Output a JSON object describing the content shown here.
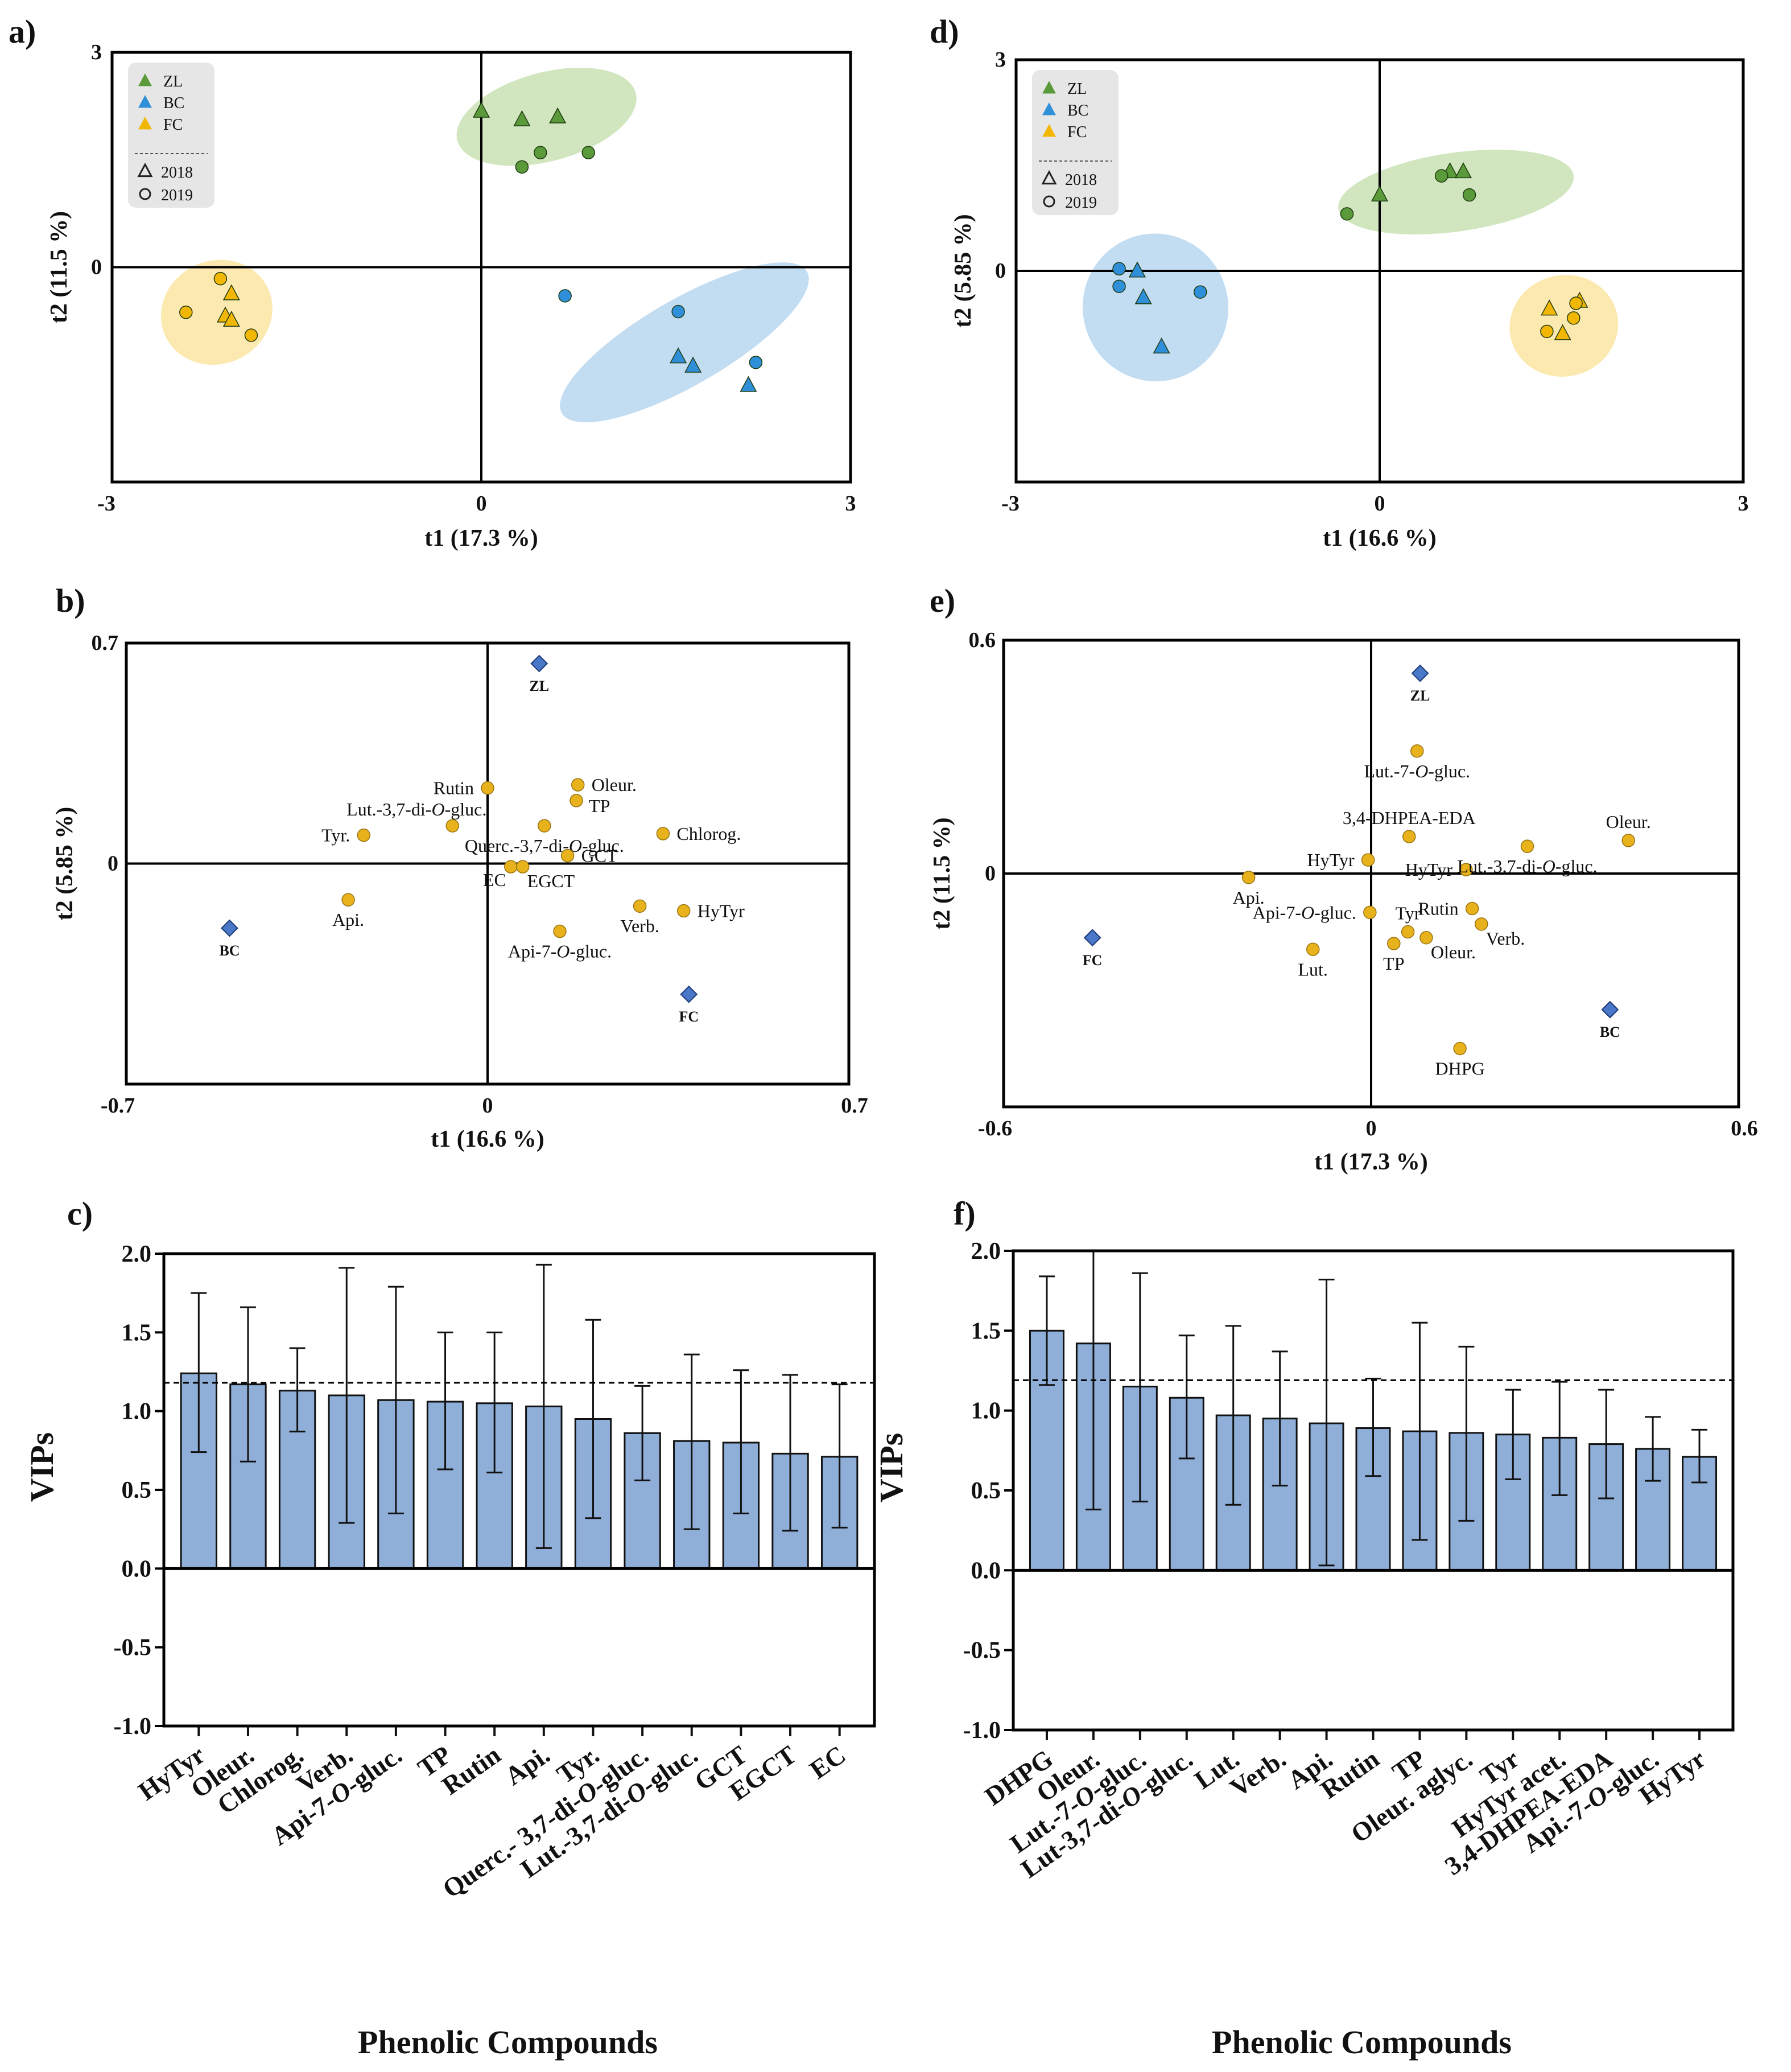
{
  "colors": {
    "ZL": "#5a9a3a",
    "BC": "#2f8fd8",
    "FC": "#f2b705",
    "ZL_ellipse": "#c9e2b3",
    "BC_ellipse": "#b7d6f0",
    "FC_ellipse": "#fbe5a2",
    "loading_point": "#e8b21c",
    "group_diamond": "#4a78c8",
    "bar_fill": "#8fafd9",
    "legend_bg": "#e6e6e6"
  },
  "chart_data": [
    {
      "id": "a",
      "panel_label": "a)",
      "type": "scatter",
      "title": "",
      "xlabel": "t1 (17.3 %)",
      "ylabel": "t2 (11.5 %)",
      "xlim": [
        -3,
        3
      ],
      "ylim": [
        -3,
        3
      ],
      "x_ticks": [
        "-3",
        "0",
        "3"
      ],
      "y_ticks": [
        "3",
        "0"
      ],
      "legend": {
        "position": "top-left",
        "groups": [
          {
            "name": "ZL",
            "color": "#5a9a3a"
          },
          {
            "name": "BC",
            "color": "#2f8fd8"
          },
          {
            "name": "FC",
            "color": "#f2b705"
          }
        ],
        "years": [
          {
            "name": "2018",
            "marker": "triangle"
          },
          {
            "name": "2019",
            "marker": "circle"
          }
        ]
      },
      "ellipses": [
        {
          "group": "ZL",
          "cx": 0.53,
          "cy": 2.1,
          "rx": 0.75,
          "ry": 0.62,
          "angle": -15
        },
        {
          "group": "BC",
          "cx": 1.65,
          "cy": -1.05,
          "rx": 1.15,
          "ry": 0.6,
          "angle": -30
        },
        {
          "group": "FC",
          "cx": -2.15,
          "cy": -0.63,
          "rx": 0.46,
          "ry": 0.72,
          "angle": -25
        }
      ],
      "series": [
        {
          "name": "ZL",
          "points": [
            {
              "x": 0.0,
              "y": 2.18,
              "m": "triangle"
            },
            {
              "x": 0.33,
              "y": 2.06,
              "m": "triangle"
            },
            {
              "x": 0.62,
              "y": 2.1,
              "m": "triangle"
            },
            {
              "x": 0.33,
              "y": 1.4,
              "m": "circle"
            },
            {
              "x": 0.48,
              "y": 1.6,
              "m": "circle"
            },
            {
              "x": 0.87,
              "y": 1.6,
              "m": "circle"
            }
          ]
        },
        {
          "name": "BC",
          "points": [
            {
              "x": 1.6,
              "y": -1.25,
              "m": "triangle"
            },
            {
              "x": 1.72,
              "y": -1.38,
              "m": "triangle"
            },
            {
              "x": 2.17,
              "y": -1.65,
              "m": "triangle"
            },
            {
              "x": 0.68,
              "y": -0.4,
              "m": "circle"
            },
            {
              "x": 1.6,
              "y": -0.62,
              "m": "circle"
            },
            {
              "x": 2.23,
              "y": -1.33,
              "m": "circle"
            }
          ]
        },
        {
          "name": "FC",
          "points": [
            {
              "x": -2.03,
              "y": -0.37,
              "m": "triangle"
            },
            {
              "x": -2.08,
              "y": -0.68,
              "m": "triangle"
            },
            {
              "x": -2.03,
              "y": -0.74,
              "m": "triangle"
            },
            {
              "x": -2.12,
              "y": -0.16,
              "m": "circle"
            },
            {
              "x": -2.4,
              "y": -0.63,
              "m": "circle"
            },
            {
              "x": -1.87,
              "y": -0.95,
              "m": "circle"
            }
          ]
        }
      ]
    },
    {
      "id": "d",
      "panel_label": "d)",
      "type": "scatter",
      "title": "",
      "xlabel": "t1 (16.6 %)",
      "ylabel": "t2 (5.85 %)",
      "xlim": [
        -3,
        3
      ],
      "ylim": [
        -3,
        3
      ],
      "x_ticks": [
        "-3",
        "0",
        "3"
      ],
      "y_ticks": [
        "3",
        "0"
      ],
      "legend": {
        "position": "top-left",
        "groups": [
          {
            "name": "ZL",
            "color": "#5a9a3a"
          },
          {
            "name": "BC",
            "color": "#2f8fd8"
          },
          {
            "name": "FC",
            "color": "#f2b705"
          }
        ],
        "years": [
          {
            "name": "2018",
            "marker": "triangle"
          },
          {
            "name": "2019",
            "marker": "circle"
          }
        ]
      },
      "ellipses": [
        {
          "group": "ZL",
          "cx": 0.63,
          "cy": 1.12,
          "rx": 0.98,
          "ry": 0.56,
          "angle": -8
        },
        {
          "group": "BC",
          "cx": -1.85,
          "cy": -0.52,
          "rx": 0.6,
          "ry": 1.05,
          "angle": -12
        },
        {
          "group": "FC",
          "cx": 1.52,
          "cy": -0.78,
          "rx": 0.45,
          "ry": 0.72,
          "angle": -15
        }
      ],
      "series": [
        {
          "name": "ZL",
          "points": [
            {
              "x": 0.0,
              "y": 1.08,
              "m": "triangle"
            },
            {
              "x": 0.58,
              "y": 1.41,
              "m": "triangle"
            },
            {
              "x": 0.69,
              "y": 1.41,
              "m": "triangle"
            },
            {
              "x": -0.27,
              "y": 0.81,
              "m": "circle"
            },
            {
              "x": 0.51,
              "y": 1.35,
              "m": "circle"
            },
            {
              "x": 0.74,
              "y": 1.08,
              "m": "circle"
            }
          ]
        },
        {
          "name": "BC",
          "points": [
            {
              "x": -2.0,
              "y": 0.0,
              "m": "triangle"
            },
            {
              "x": -1.95,
              "y": -0.38,
              "m": "triangle"
            },
            {
              "x": -1.8,
              "y": -1.08,
              "m": "triangle"
            },
            {
              "x": -2.15,
              "y": 0.03,
              "m": "circle"
            },
            {
              "x": -2.15,
              "y": -0.22,
              "m": "circle"
            },
            {
              "x": -1.48,
              "y": -0.3,
              "m": "circle"
            }
          ]
        },
        {
          "name": "FC",
          "points": [
            {
              "x": 1.4,
              "y": -0.54,
              "m": "triangle"
            },
            {
              "x": 1.51,
              "y": -0.89,
              "m": "triangle"
            },
            {
              "x": 1.65,
              "y": -0.43,
              "m": "triangle"
            },
            {
              "x": 1.38,
              "y": -0.86,
              "m": "circle"
            },
            {
              "x": 1.6,
              "y": -0.67,
              "m": "circle"
            },
            {
              "x": 1.62,
              "y": -0.46,
              "m": "circle"
            }
          ]
        }
      ]
    },
    {
      "id": "b",
      "panel_label": "b)",
      "type": "scatter",
      "title": "",
      "xlabel": "t1 (16.6 %)",
      "ylabel": "t2 (5.85 %)",
      "xlim": [
        -0.7,
        0.7
      ],
      "ylim": [
        -0.7,
        0.7
      ],
      "x_ticks": [
        "-0.7",
        "0",
        "0.7"
      ],
      "y_ticks": [
        "0.7",
        "0"
      ],
      "groups": [
        {
          "label": "ZL",
          "x": 0.1,
          "y": 0.635
        },
        {
          "label": "BC",
          "x": -0.5,
          "y": -0.205
        },
        {
          "label": "FC",
          "x": 0.39,
          "y": -0.415
        }
      ],
      "loadings": [
        {
          "label": "Rutin",
          "x": 0.0,
          "y": 0.24,
          "pos": "left"
        },
        {
          "label": "Oleur.",
          "x": 0.175,
          "y": 0.25,
          "pos": "right"
        },
        {
          "label": "TP",
          "x": 0.172,
          "y": 0.2,
          "pos": "right-low"
        },
        {
          "label": "Lut.-3,7-di-O-gluc.",
          "x": -0.068,
          "y": 0.12,
          "pos": "left-up"
        },
        {
          "label": "Tyr.",
          "x": -0.24,
          "y": 0.09,
          "pos": "left"
        },
        {
          "label": "Querc.-3,7-di-O-gluc.",
          "x": 0.11,
          "y": 0.12,
          "pos": "below"
        },
        {
          "label": "Chlorog.",
          "x": 0.34,
          "y": 0.095,
          "pos": "right"
        },
        {
          "label": "GCT",
          "x": 0.155,
          "y": 0.025,
          "pos": "right"
        },
        {
          "label": "EC",
          "x": 0.045,
          "y": -0.01,
          "pos": "below-left"
        },
        {
          "label": "EGCT",
          "x": 0.068,
          "y": -0.01,
          "pos": "below-right"
        },
        {
          "label": "Api.",
          "x": -0.27,
          "y": -0.115,
          "pos": "below"
        },
        {
          "label": "Verb.",
          "x": 0.295,
          "y": -0.135,
          "pos": "below"
        },
        {
          "label": "HyTyr",
          "x": 0.38,
          "y": -0.15,
          "pos": "right"
        },
        {
          "label": "Api-7-O-gluc.",
          "x": 0.14,
          "y": -0.215,
          "pos": "below"
        }
      ]
    },
    {
      "id": "e",
      "panel_label": "e)",
      "type": "scatter",
      "title": "",
      "xlabel": "t1 (17.3 %)",
      "ylabel": "t2 (11.5 %)",
      "xlim": [
        -0.6,
        0.6
      ],
      "ylim": [
        -0.6,
        0.6
      ],
      "x_ticks": [
        "-0.6",
        "0",
        "0.6"
      ],
      "y_ticks": [
        "0.6",
        "0"
      ],
      "groups": [
        {
          "label": "ZL",
          "x": 0.08,
          "y": 0.515
        },
        {
          "label": "FC",
          "x": -0.455,
          "y": -0.165
        },
        {
          "label": "BC",
          "x": 0.39,
          "y": -0.35
        }
      ],
      "loadings": [
        {
          "label": "Lut.-7-O-gluc.",
          "x": 0.075,
          "y": 0.315,
          "pos": "below"
        },
        {
          "label": "3,4-DHPEA-EDA",
          "x": 0.062,
          "y": 0.095,
          "pos": "above"
        },
        {
          "label": "Oleur.",
          "x": 0.42,
          "y": 0.085,
          "pos": "above"
        },
        {
          "label": "HyTyr",
          "x": -0.005,
          "y": 0.035,
          "pos": "left"
        },
        {
          "label": "HyTyr",
          "x": 0.155,
          "y": 0.01,
          "pos": "left"
        },
        {
          "label": "Lut.-3,7-di-O-gluc.",
          "x": 0.255,
          "y": 0.07,
          "pos": "below"
        },
        {
          "label": "Api.",
          "x": -0.2,
          "y": -0.01,
          "pos": "below"
        },
        {
          "label": "Api-7-O-gluc.",
          "x": -0.002,
          "y": -0.1,
          "pos": "left"
        },
        {
          "label": "Tyr",
          "x": 0.06,
          "y": -0.15,
          "pos": "above"
        },
        {
          "label": "Rutin",
          "x": 0.165,
          "y": -0.09,
          "pos": "left"
        },
        {
          "label": "Verb.",
          "x": 0.18,
          "y": -0.13,
          "pos": "below-right"
        },
        {
          "label": "Lut.",
          "x": -0.095,
          "y": -0.195,
          "pos": "below"
        },
        {
          "label": "TP",
          "x": 0.037,
          "y": -0.18,
          "pos": "below"
        },
        {
          "label": "Oleur.",
          "x": 0.09,
          "y": -0.165,
          "pos": "below-right"
        },
        {
          "label": "DHPG",
          "x": 0.145,
          "y": -0.45,
          "pos": "below"
        }
      ]
    },
    {
      "id": "c",
      "panel_label": "c)",
      "type": "bar",
      "title": "",
      "xlabel": "Phenolic Compounds",
      "ylabel": "VIPs",
      "ylim": [
        -1.0,
        2.0
      ],
      "y_ticks": [
        "2.0",
        "1.5",
        "1.0",
        "0.5",
        "0.0",
        "-0.5",
        "-1.0"
      ],
      "threshold": 1.18,
      "categories": [
        "HyTyr",
        "Oleur.",
        "Chlorog.",
        "Verb.",
        "Api-7-O-gluc.",
        "TP",
        "Rutin",
        "Api.",
        "Tyr.",
        "Querc.- 3,7-di-O-gluc.",
        "Lut.-3,7-di-O-gluc.",
        "GCT",
        "EGCT",
        "EC"
      ],
      "values": [
        1.24,
        1.17,
        1.13,
        1.1,
        1.07,
        1.06,
        1.05,
        1.03,
        0.95,
        0.86,
        0.81,
        0.8,
        0.73,
        0.71
      ],
      "err_upper": [
        1.75,
        1.66,
        1.4,
        1.91,
        1.79,
        1.5,
        1.5,
        1.93,
        1.58,
        1.16,
        1.36,
        1.26,
        1.23,
        1.17
      ],
      "err_lower": [
        0.74,
        0.68,
        0.87,
        0.29,
        0.35,
        0.63,
        0.61,
        0.13,
        0.32,
        0.56,
        0.25,
        0.35,
        0.24,
        0.26
      ]
    },
    {
      "id": "f",
      "panel_label": "f)",
      "type": "bar",
      "title": "",
      "xlabel": "Phenolic Compounds",
      "ylabel": "VIPs",
      "ylim": [
        -1.0,
        2.0
      ],
      "y_ticks": [
        "2.0",
        "1.5",
        "1.0",
        "0.5",
        "0.0",
        "-0.5",
        "-1.0"
      ],
      "threshold": 1.19,
      "categories": [
        "DHPG",
        "Oleur.",
        "Lut.-7-O-gluc.",
        "Lut-3,7-di-O-gluc.",
        "Lut.",
        "Verb.",
        "Api.",
        "Rutin",
        "TP",
        "Oleur. aglyc.",
        "Tyr",
        "HyTyr acet.",
        "3,4-DHPEA-EDA",
        "Api.-7-O-gluc.",
        "HyTyr"
      ],
      "values": [
        1.5,
        1.42,
        1.15,
        1.08,
        0.97,
        0.95,
        0.92,
        0.89,
        0.87,
        0.86,
        0.85,
        0.83,
        0.79,
        0.76,
        0.71
      ],
      "err_upper": [
        1.84,
        2.0,
        1.86,
        1.47,
        1.53,
        1.37,
        1.82,
        1.2,
        1.55,
        1.4,
        1.13,
        1.18,
        1.13,
        0.96,
        0.88
      ],
      "err_lower": [
        1.16,
        0.38,
        0.43,
        0.7,
        0.41,
        0.53,
        0.03,
        0.59,
        0.19,
        0.31,
        0.57,
        0.47,
        0.45,
        0.56,
        0.55
      ]
    }
  ]
}
